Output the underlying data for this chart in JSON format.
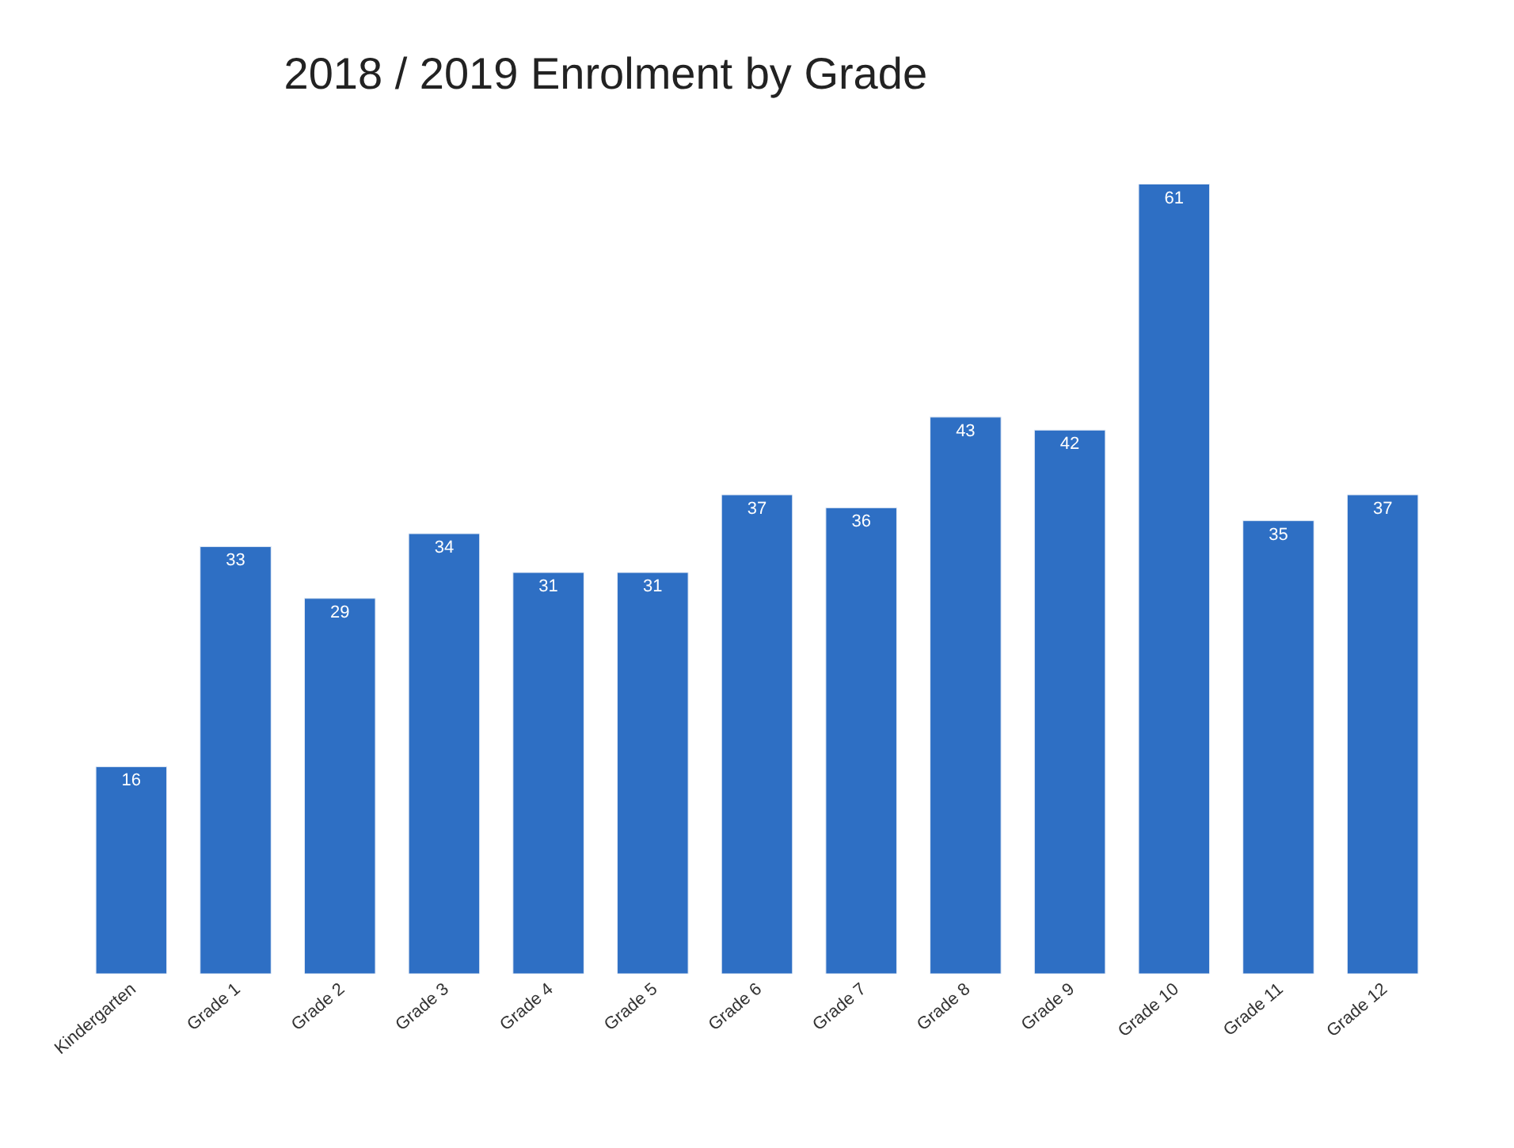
{
  "chart_data": {
    "type": "bar",
    "title": "2018 / 2019 Enrolment by Grade",
    "categories": [
      "Kindergarten",
      "Grade 1",
      "Grade 2",
      "Grade 3",
      "Grade 4",
      "Grade 5",
      "Grade 6",
      "Grade 7",
      "Grade 8",
      "Grade 9",
      "Grade 10",
      "Grade 11",
      "Grade 12"
    ],
    "values": [
      16,
      33,
      29,
      34,
      31,
      31,
      37,
      36,
      43,
      42,
      61,
      35,
      37
    ],
    "color": "#2e6fc4",
    "data_labels": true
  }
}
